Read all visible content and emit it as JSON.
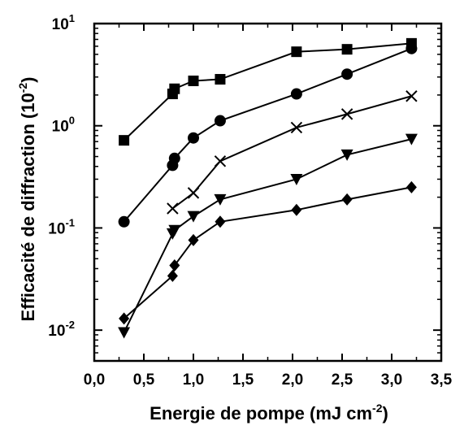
{
  "chart_data": {
    "type": "line",
    "xlabel": "Energie de pompe (mJ cm",
    "xlabel_sup": "-2",
    "xlabel_close": ")",
    "ylabel": "Efficacité de diffraction (10",
    "ylabel_sup": "-2",
    "ylabel_close": ")",
    "xlim": [
      0.0,
      3.5
    ],
    "ylim": [
      0.005,
      10
    ],
    "yscale": "log",
    "grid": false,
    "x_ticks": [
      "0,0",
      "0,5",
      "1,0",
      "1,5",
      "2,0",
      "2,5",
      "3,0",
      "3,5"
    ],
    "y_ticks": [
      {
        "base": "10",
        "exp": "-2",
        "value": 0.01
      },
      {
        "base": "10",
        "exp": "-1",
        "value": 0.1
      },
      {
        "base": "10",
        "exp": "0",
        "value": 1
      },
      {
        "base": "10",
        "exp": "1",
        "value": 10
      }
    ],
    "series": [
      {
        "marker": "square",
        "x": [
          0.3,
          0.79,
          0.81,
          1.0,
          1.27,
          2.04,
          2.55,
          3.2
        ],
        "y": [
          0.72,
          2.05,
          2.3,
          2.75,
          2.85,
          5.3,
          5.6,
          6.4
        ]
      },
      {
        "marker": "circle",
        "x": [
          0.3,
          0.79,
          0.81,
          1.0,
          1.27,
          2.04,
          2.55,
          3.2
        ],
        "y": [
          0.115,
          0.41,
          0.48,
          0.76,
          1.12,
          2.05,
          3.2,
          5.7
        ]
      },
      {
        "marker": "x",
        "x": [
          0.79,
          1.0,
          1.27,
          2.04,
          2.55,
          3.2
        ],
        "y": [
          0.155,
          0.22,
          0.45,
          0.96,
          1.3,
          1.95
        ]
      },
      {
        "marker": "triangle-down",
        "x": [
          0.3,
          0.79,
          0.81,
          1.0,
          1.27,
          2.04,
          2.55,
          3.2
        ],
        "y": [
          0.0095,
          0.088,
          0.095,
          0.13,
          0.19,
          0.3,
          0.52,
          0.74
        ]
      },
      {
        "marker": "diamond",
        "x": [
          0.3,
          0.79,
          0.81,
          1.0,
          1.27,
          2.04,
          2.55,
          3.2
        ],
        "y": [
          0.013,
          0.034,
          0.043,
          0.076,
          0.115,
          0.15,
          0.19,
          0.25
        ]
      }
    ]
  }
}
